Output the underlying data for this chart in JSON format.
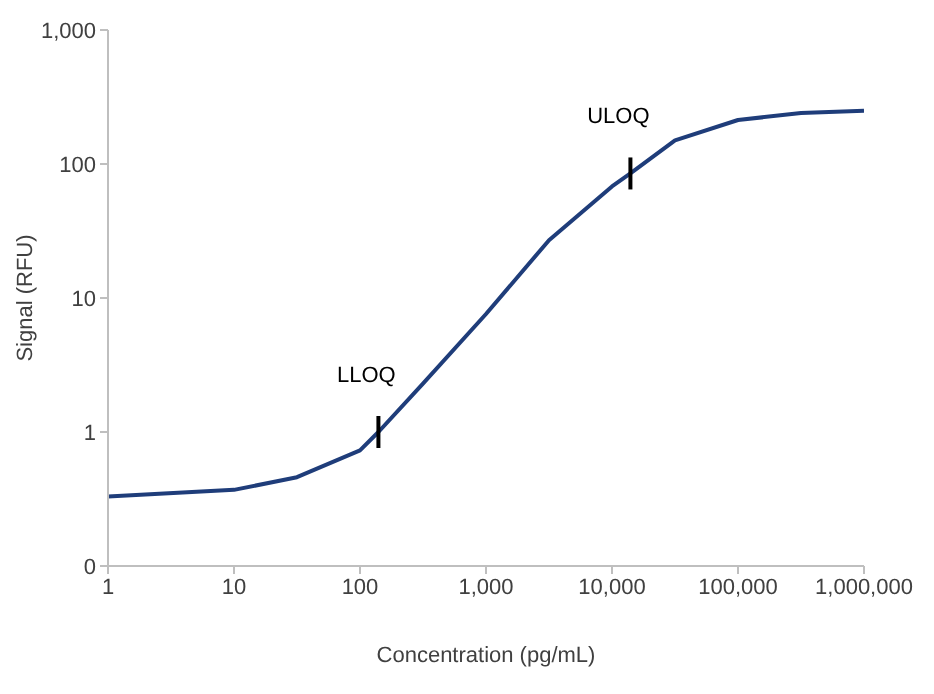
{
  "chart_data": {
    "type": "line",
    "xlabel": "Concentration (pg/mL)",
    "ylabel": "Signal (RFU)",
    "log": "xy",
    "grid": false,
    "legend": false,
    "marker": "none",
    "line_style": "solid",
    "x": [
      1,
      10,
      31.6,
      100,
      140,
      316,
      1000,
      3162,
      10000,
      14000,
      31623,
      100000,
      316228,
      1000000
    ],
    "series": [
      {
        "color": "#1f3d7a",
        "values": [
          0.33,
          0.37,
          0.46,
          0.73,
          1,
          2.3,
          7.6,
          27,
          68,
          85,
          150,
          213,
          240,
          250
        ]
      }
    ],
    "xlim": [
      1,
      1000000
    ],
    "xticks": [
      1,
      10,
      100,
      {
        "value": 1000,
        "label": "1,000"
      },
      {
        "value": 10000,
        "label": "10,000"
      },
      {
        "value": 100000,
        "label": "100,000"
      },
      {
        "value": 1000000,
        "label": "1,000,000"
      }
    ],
    "ylim": [
      0.1,
      1000
    ],
    "yticks": [
      {
        "value": 0.1,
        "label": "0"
      },
      1,
      10,
      100,
      {
        "value": 1000,
        "label": "1,000"
      }
    ],
    "annotations": [
      {
        "text": "LLOQ",
        "x": 140,
        "y": 1
      },
      {
        "text": "ULOQ",
        "x": 14000,
        "y": 85
      }
    ]
  }
}
